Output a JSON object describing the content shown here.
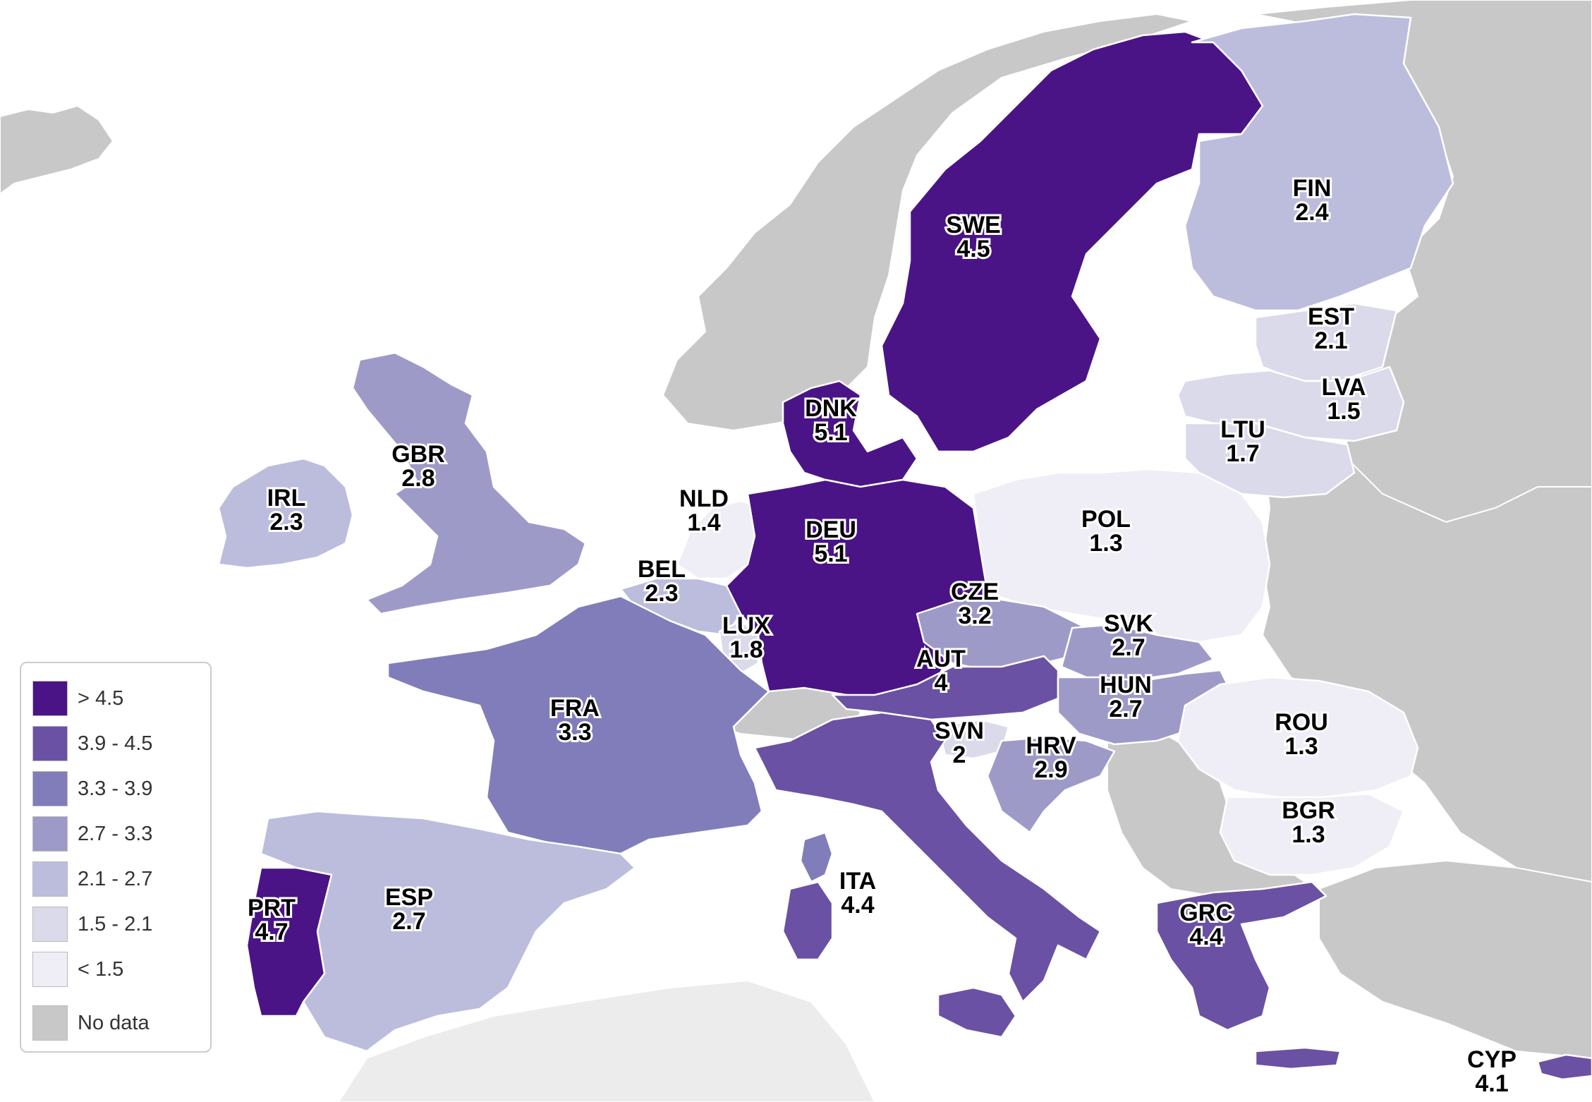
{
  "colors": {
    "gt_4_5": "#4a1486",
    "c_3_9_4_5": "#6a51a3",
    "c_3_3_3_9": "#807dba",
    "c_2_7_3_3": "#9e9ac8",
    "c_2_1_2_7": "#bcbddc",
    "c_1_5_2_1": "#dadaeb",
    "lt_1_5": "#efedf5",
    "no_data": "#c8c8c8"
  },
  "legend": {
    "items": [
      {
        "label": "> 4.5",
        "color": "#4a1486"
      },
      {
        "label": "3.9 - 4.5",
        "color": "#6a51a3"
      },
      {
        "label": "3.3 - 3.9",
        "color": "#807dba"
      },
      {
        "label": "2.7 - 3.3",
        "color": "#9e9ac8"
      },
      {
        "label": "2.1 - 2.7",
        "color": "#bcbddc"
      },
      {
        "label": "1.5 - 2.1",
        "color": "#dadaeb"
      },
      {
        "label": "< 1.5",
        "color": "#efedf5"
      },
      {
        "label": "No data",
        "color": "#c8c8c8"
      }
    ]
  },
  "countries": [
    {
      "code": "SWE",
      "value": "4.5"
    },
    {
      "code": "FIN",
      "value": "2.4"
    },
    {
      "code": "EST",
      "value": "2.1"
    },
    {
      "code": "LVA",
      "value": "1.5"
    },
    {
      "code": "LTU",
      "value": "1.7"
    },
    {
      "code": "DNK",
      "value": "5.1"
    },
    {
      "code": "GBR",
      "value": "2.8"
    },
    {
      "code": "IRL",
      "value": "2.3"
    },
    {
      "code": "NLD",
      "value": "1.4"
    },
    {
      "code": "BEL",
      "value": "2.3"
    },
    {
      "code": "LUX",
      "value": "1.8"
    },
    {
      "code": "DEU",
      "value": "5.1"
    },
    {
      "code": "POL",
      "value": "1.3"
    },
    {
      "code": "CZE",
      "value": "3.2"
    },
    {
      "code": "SVK",
      "value": "2.7"
    },
    {
      "code": "AUT",
      "value": "4"
    },
    {
      "code": "HUN",
      "value": "2.7"
    },
    {
      "code": "FRA",
      "value": "3.3"
    },
    {
      "code": "SVN",
      "value": "2"
    },
    {
      "code": "HRV",
      "value": "2.9"
    },
    {
      "code": "ROU",
      "value": "1.3"
    },
    {
      "code": "BGR",
      "value": "1.3"
    },
    {
      "code": "ITA",
      "value": "4.4"
    },
    {
      "code": "ESP",
      "value": "2.7"
    },
    {
      "code": "PRT",
      "value": "4.7"
    },
    {
      "code": "GRC",
      "value": "4.4"
    },
    {
      "code": "CYP",
      "value": "4.1"
    }
  ]
}
